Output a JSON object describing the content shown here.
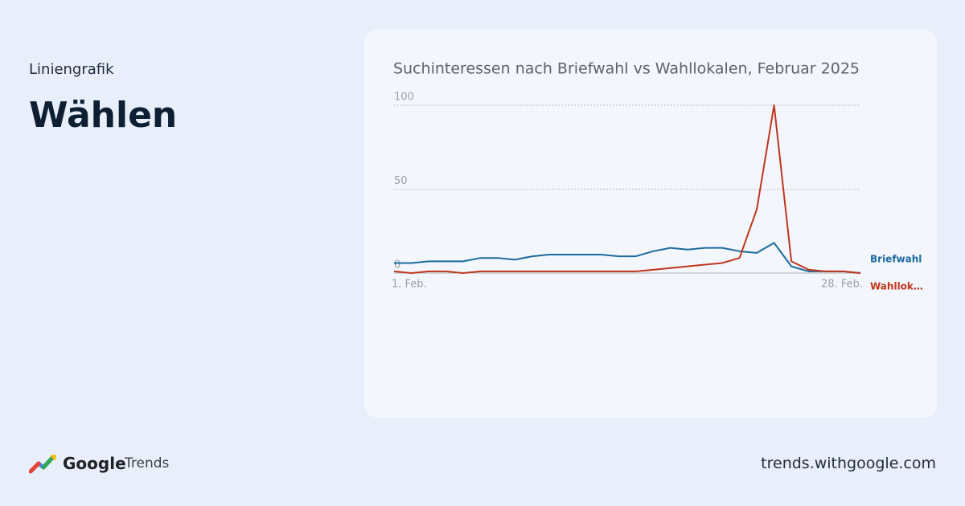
{
  "header": {
    "kicker": "Liniengrafik",
    "title": "Wählen"
  },
  "chart_data": {
    "type": "line",
    "title": "Suchinteressen nach Briefwahl vs Wahllokalen, Februar 2025",
    "categories": [
      "1. Feb.",
      null,
      null,
      null,
      null,
      null,
      null,
      null,
      null,
      null,
      null,
      null,
      null,
      null,
      null,
      null,
      null,
      null,
      null,
      null,
      null,
      null,
      null,
      null,
      null,
      null,
      null,
      "28. Feb."
    ],
    "series": [
      {
        "name": "Briefwahl",
        "color": "#1a6b9e",
        "values": [
          6,
          6,
          7,
          7,
          7,
          9,
          9,
          8,
          10,
          11,
          11,
          11,
          11,
          10,
          10,
          13,
          15,
          14,
          15,
          15,
          13,
          12,
          18,
          4,
          1,
          1,
          1,
          0
        ]
      },
      {
        "name": "Wahllok…",
        "color": "#c0351c",
        "values": [
          1,
          0,
          1,
          1,
          0,
          1,
          1,
          1,
          1,
          1,
          1,
          1,
          1,
          1,
          1,
          2,
          3,
          4,
          5,
          6,
          9,
          38,
          100,
          7,
          2,
          1,
          1,
          0
        ]
      }
    ],
    "ylim": [
      0,
      100
    ],
    "yticks": [
      0,
      50,
      100
    ],
    "grid": true
  },
  "footer": {
    "brand_google": "Google",
    "brand_product": "Trends",
    "url": "trends.withgoogle.com"
  }
}
